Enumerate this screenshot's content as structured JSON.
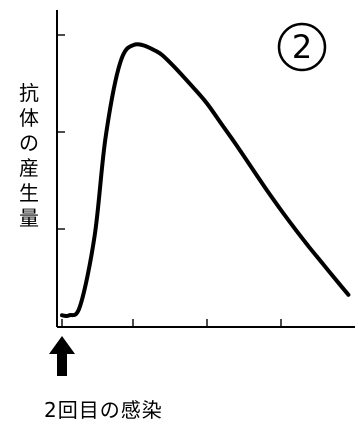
{
  "chart_data": {
    "type": "line",
    "title": "",
    "badge": "2",
    "ylabel": "抗体の産生量",
    "xlabel": "2回目の感染",
    "x": [
      0,
      0.1,
      0.25,
      0.45,
      0.6,
      0.8,
      1.0,
      1.3,
      1.5,
      1.8,
      2.0,
      2.2,
      2.4,
      2.6,
      2.8,
      3.0,
      3.2,
      3.4,
      3.6,
      3.8,
      3.95
    ],
    "y": [
      0.05,
      0.05,
      0.15,
      0.9,
      1.95,
      2.75,
      2.95,
      2.88,
      2.75,
      2.5,
      2.32,
      2.1,
      1.88,
      1.65,
      1.42,
      1.2,
      0.99,
      0.79,
      0.6,
      0.41,
      0.27
    ],
    "xlim": [
      0,
      4
    ],
    "ylim": [
      0,
      3
    ],
    "x_ticks": [
      0,
      1,
      2,
      3
    ],
    "y_ticks": [
      1,
      2,
      3
    ],
    "grid": false,
    "colors": {
      "line": "#000000",
      "arrow": "#000000"
    }
  }
}
